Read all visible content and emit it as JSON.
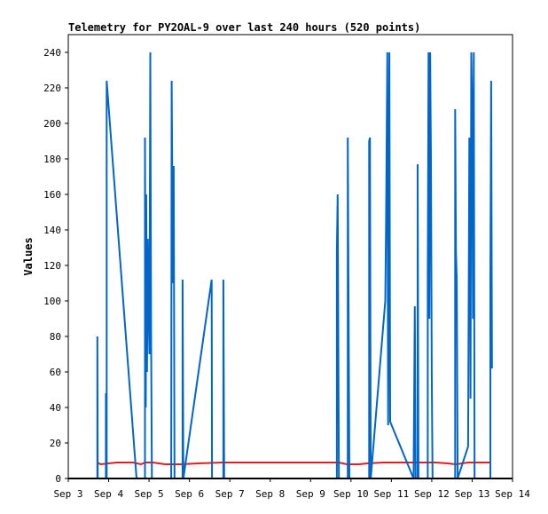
{
  "chart_data": {
    "type": "line",
    "title": "Telemetry for PY2OAL-9 over last 240 hours (520 points)",
    "ylabel": "Values",
    "xlabel": "",
    "ylim": [
      0,
      250
    ],
    "yticks": [
      0,
      20,
      40,
      60,
      80,
      100,
      120,
      140,
      160,
      180,
      200,
      220,
      240
    ],
    "xlim": [
      "Sep 3",
      "Sep 14"
    ],
    "xticks": [
      {
        "label": "Sep 3",
        "day": 3
      },
      {
        "label": "Sep 4",
        "day": 4
      },
      {
        "label": "Sep 5",
        "day": 5
      },
      {
        "label": "Sep 6",
        "day": 6
      },
      {
        "label": "Sep 7",
        "day": 7
      },
      {
        "label": "Sep 8",
        "day": 8
      },
      {
        "label": "Sep 9",
        "day": 9
      },
      {
        "label": "Sep 10",
        "day": 10
      },
      {
        "label": "Sep 11",
        "day": 11
      },
      {
        "label": "Sep 12",
        "day": 12
      },
      {
        "label": "Sep 13",
        "day": 13
      },
      {
        "label": "Sep 14",
        "day": 14
      }
    ],
    "grid": false,
    "series": [
      {
        "color": "#e41a1c",
        "points": [
          [
            3.72,
            9
          ],
          [
            3.8,
            8
          ],
          [
            4.2,
            9
          ],
          [
            4.6,
            9
          ],
          [
            4.8,
            8
          ],
          [
            4.9,
            9
          ],
          [
            5.1,
            9
          ],
          [
            5.4,
            8
          ],
          [
            5.7,
            8
          ],
          [
            5.8,
            8
          ],
          [
            6.2,
            8.5
          ],
          [
            6.8,
            9
          ],
          [
            7.5,
            9
          ],
          [
            8.5,
            9
          ],
          [
            9.3,
            9
          ],
          [
            9.7,
            9
          ],
          [
            9.9,
            8
          ],
          [
            10.2,
            8
          ],
          [
            10.4,
            8.5
          ],
          [
            10.8,
            9
          ],
          [
            11.2,
            9
          ],
          [
            11.5,
            9
          ],
          [
            11.8,
            9
          ],
          [
            12.1,
            9
          ],
          [
            12.4,
            8.5
          ],
          [
            12.6,
            8
          ],
          [
            12.9,
            9
          ],
          [
            13.2,
            9
          ],
          [
            13.45,
            9
          ]
        ]
      },
      {
        "color": "#0066cc",
        "points": [
          [
            3.72,
            0
          ],
          [
            3.72,
            80
          ],
          [
            3.73,
            0
          ],
          [
            3.93,
            0
          ],
          [
            3.93,
            48
          ],
          [
            3.95,
            0
          ],
          [
            3.95,
            224
          ],
          [
            4.69,
            0
          ],
          [
            4.9,
            0
          ],
          [
            4.9,
            192
          ],
          [
            4.92,
            40
          ],
          [
            4.93,
            160
          ],
          [
            4.95,
            60
          ],
          [
            4.97,
            135
          ],
          [
            4.99,
            98
          ],
          [
            5.01,
            70
          ],
          [
            5.03,
            240
          ],
          [
            5.05,
            80
          ],
          [
            5.07,
            0
          ],
          [
            5.55,
            0
          ],
          [
            5.56,
            224
          ],
          [
            5.59,
            110
          ],
          [
            5.61,
            176
          ],
          [
            5.63,
            0
          ],
          [
            5.83,
            0
          ],
          [
            5.83,
            112
          ],
          [
            5.85,
            0
          ],
          [
            6.55,
            112
          ],
          [
            6.56,
            0
          ],
          [
            6.84,
            0
          ],
          [
            6.84,
            112
          ],
          [
            6.86,
            0
          ],
          [
            9.65,
            0
          ],
          [
            9.65,
            128
          ],
          [
            9.67,
            160
          ],
          [
            9.7,
            0
          ],
          [
            9.92,
            0
          ],
          [
            9.92,
            192
          ],
          [
            9.94,
            96
          ],
          [
            9.96,
            0
          ],
          [
            10.45,
            0
          ],
          [
            10.45,
            190
          ],
          [
            10.47,
            192
          ],
          [
            10.49,
            0
          ],
          [
            10.85,
            100
          ],
          [
            10.87,
            145
          ],
          [
            10.9,
            240
          ],
          [
            10.92,
            30
          ],
          [
            10.95,
            240
          ],
          [
            10.97,
            32
          ],
          [
            11.55,
            0
          ],
          [
            11.58,
            97
          ],
          [
            11.6,
            0
          ],
          [
            11.65,
            0
          ],
          [
            11.65,
            177
          ],
          [
            11.67,
            0
          ],
          [
            11.9,
            0
          ],
          [
            11.9,
            112
          ],
          [
            11.92,
            240
          ],
          [
            11.94,
            90
          ],
          [
            11.96,
            240
          ],
          [
            11.98,
            180
          ],
          [
            12.0,
            60
          ],
          [
            12.02,
            0
          ],
          [
            12.58,
            0
          ],
          [
            12.58,
            208
          ],
          [
            12.6,
            128
          ],
          [
            12.62,
            112
          ],
          [
            12.64,
            0
          ],
          [
            12.9,
            18
          ],
          [
            12.93,
            192
          ],
          [
            12.95,
            145
          ],
          [
            12.96,
            45
          ],
          [
            12.98,
            240
          ],
          [
            13.0,
            208
          ],
          [
            13.02,
            90
          ],
          [
            13.04,
            240
          ],
          [
            13.06,
            0
          ],
          [
            13.45,
            0
          ],
          [
            13.45,
            112
          ],
          [
            13.47,
            224
          ],
          [
            13.49,
            62
          ]
        ]
      }
    ]
  }
}
